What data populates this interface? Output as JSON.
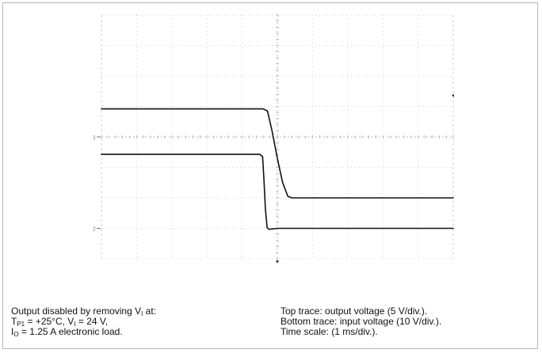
{
  "chart_data": {
    "type": "line",
    "x_div_units": "ms/div",
    "x_divs": 10,
    "x_per_div": 1,
    "xlim": [
      0,
      10
    ],
    "y_divs": 8,
    "grid": true,
    "series": [
      {
        "name": "output voltage",
        "channel_marker": "1",
        "volts_per_div": 5,
        "ground_div": 4,
        "points": [
          [
            0,
            4.92
          ],
          [
            4.6,
            4.92
          ],
          [
            4.72,
            4.85
          ],
          [
            4.85,
            4.2
          ],
          [
            5.0,
            3.3
          ],
          [
            5.15,
            2.5
          ],
          [
            5.3,
            2.05
          ],
          [
            5.42,
            2.0
          ],
          [
            10,
            2.0
          ]
        ]
      },
      {
        "name": "input voltage",
        "channel_marker": "2",
        "volts_per_div": 10,
        "ground_div": 1,
        "points": [
          [
            0,
            3.43
          ],
          [
            4.5,
            3.43
          ],
          [
            4.58,
            3.35
          ],
          [
            4.62,
            2.6
          ],
          [
            4.66,
            1.65
          ],
          [
            4.71,
            1.02
          ],
          [
            4.76,
            0.97
          ],
          [
            5.0,
            1.0
          ],
          [
            10,
            1.0
          ]
        ]
      }
    ]
  },
  "caption": {
    "left": {
      "line1_prefix": "Output disabled by removing V",
      "line1_sub": "I",
      "line1_suffix": " at:",
      "line2_a": "T",
      "line2_a_sub": "P1",
      "line2_b": " = +25°C, V",
      "line2_b_sub": "I",
      "line2_c": " = 24 V,",
      "line3_a": "I",
      "line3_a_sub": "O",
      "line3_b": " = 1.25 A electronic load."
    },
    "right": {
      "line1": "Top trace: output voltage (5 V/div.).",
      "line2": "Bottom trace: input voltage (10 V/div.).",
      "line3": "Time scale: (1 ms/div.)."
    }
  },
  "colors": {
    "trace": "#111111",
    "grid": "#cfcfcf",
    "frame": "#b8b8b8"
  }
}
